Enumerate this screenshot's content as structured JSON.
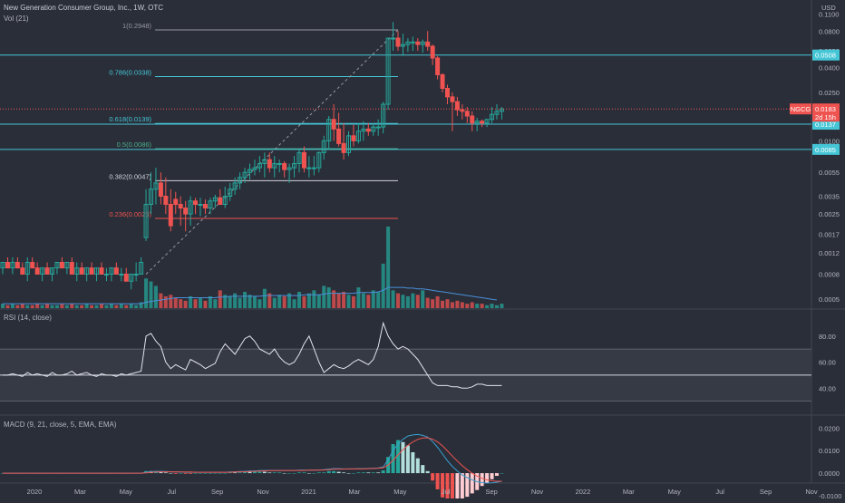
{
  "header": {
    "price_title": "New Generation Consumer Group, Inc., 1W, OTC",
    "volume_label": "Vol (21)",
    "rsi_title": "RSI (14, close)",
    "macd_title": "MACD (9, 21, close, 5, EMA, EMA)",
    "currency": "USD"
  },
  "colors": {
    "background": "#2a2e39",
    "up": "#26a69a",
    "down": "#ef5350",
    "fib_cyan": "#45c6d6",
    "fib_red": "#ef5350",
    "fib_white": "#d1d4dc",
    "fib_green": "#4caf8a",
    "volume_ma": "#4a90d9",
    "rsi_line": "#e0e3eb",
    "macd_line": "#3aa0d0",
    "signal_line": "#ef5350"
  },
  "chart_data": [
    {
      "type": "candlestick",
      "name": "price",
      "scale": "log",
      "ylim": [
        0.00045,
        0.13
      ],
      "y_ticks": [
        "0.1100",
        "0.0800",
        "0.0550",
        "0.0400",
        "0.0250",
        "0.0150",
        "0.0100",
        "0.0055",
        "0.0035",
        "0.0025",
        "0.0017",
        "0.0012",
        "0.0008",
        "0.0005"
      ],
      "x_ticks": [
        "2020",
        "Mar",
        "May",
        "Jul",
        "Sep",
        "Nov",
        "2021",
        "Mar",
        "May",
        "Jul",
        "Sep",
        "Nov",
        "2022",
        "Mar",
        "May",
        "Jul",
        "Sep",
        "Nov"
      ],
      "series": [
        {
          "name": "NGCG",
          "start": "2019-11-04",
          "interval": "1W",
          "open": [
            0.0009,
            0.001,
            0.0009,
            0.001,
            0.0009,
            0.0008,
            0.001,
            0.0009,
            0.0008,
            0.0009,
            0.0008,
            0.0009,
            0.001,
            0.0009,
            0.001,
            0.0008,
            0.0009,
            0.0008,
            0.0009,
            0.0008,
            0.0009,
            0.0008,
            0.0008,
            0.0009,
            0.0008,
            0.0008,
            0.0007,
            0.0008,
            0.0008,
            0.0016,
            0.003,
            0.004,
            0.0045,
            0.0035,
            0.003,
            0.0033,
            0.003,
            0.0028,
            0.0025,
            0.0032,
            0.003,
            0.003,
            0.0028,
            0.0032,
            0.0034,
            0.003,
            0.0035,
            0.004,
            0.0045,
            0.005,
            0.0055,
            0.0058,
            0.006,
            0.0065,
            0.007,
            0.006,
            0.0065,
            0.0065,
            0.0058,
            0.006,
            0.0065,
            0.008,
            0.006,
            0.006,
            0.006,
            0.008,
            0.01,
            0.015,
            0.0125,
            0.0095,
            0.008,
            0.011,
            0.01,
            0.012,
            0.0125,
            0.012,
            0.013,
            0.013,
            0.02,
            0.07,
            0.07,
            0.06,
            0.062,
            0.065,
            0.065,
            0.062,
            0.065,
            0.06,
            0.048,
            0.035,
            0.027,
            0.023,
            0.021,
            0.018,
            0.0175,
            0.016,
            0.014,
            0.0145,
            0.014,
            0.015,
            0.0165,
            0.0175
          ],
          "high": [
            0.001,
            0.0011,
            0.0011,
            0.0011,
            0.001,
            0.0011,
            0.0011,
            0.001,
            0.0009,
            0.001,
            0.0009,
            0.001,
            0.0011,
            0.001,
            0.0011,
            0.001,
            0.001,
            0.0009,
            0.001,
            0.0009,
            0.001,
            0.0009,
            0.0009,
            0.001,
            0.0009,
            0.0009,
            0.0008,
            0.001,
            0.0011,
            0.004,
            0.0055,
            0.006,
            0.0055,
            0.005,
            0.004,
            0.0038,
            0.0035,
            0.0032,
            0.0035,
            0.0034,
            0.0034,
            0.0033,
            0.0034,
            0.0036,
            0.004,
            0.0042,
            0.0045,
            0.005,
            0.0055,
            0.006,
            0.0065,
            0.007,
            0.0075,
            0.008,
            0.008,
            0.0075,
            0.007,
            0.0068,
            0.0065,
            0.0075,
            0.0085,
            0.009,
            0.0075,
            0.0075,
            0.0082,
            0.011,
            0.016,
            0.02,
            0.017,
            0.014,
            0.012,
            0.0135,
            0.014,
            0.0145,
            0.014,
            0.014,
            0.015,
            0.021,
            0.07,
            0.095,
            0.08,
            0.076,
            0.07,
            0.072,
            0.07,
            0.068,
            0.08,
            0.062,
            0.05,
            0.036,
            0.029,
            0.025,
            0.023,
            0.02,
            0.019,
            0.0175,
            0.0155,
            0.015,
            0.015,
            0.019,
            0.02,
            0.019
          ],
          "low": [
            0.0008,
            0.0009,
            0.0008,
            0.0009,
            0.0008,
            0.0007,
            0.0009,
            0.0008,
            0.0007,
            0.0008,
            0.0007,
            0.0008,
            0.0009,
            0.0008,
            0.0008,
            0.0007,
            0.0008,
            0.0007,
            0.0008,
            0.0007,
            0.0008,
            0.0007,
            0.0007,
            0.0008,
            0.0007,
            0.0007,
            0.0006,
            0.0007,
            0.0008,
            0.0015,
            0.0025,
            0.003,
            0.003,
            0.0025,
            0.0018,
            0.0025,
            0.002,
            0.0018,
            0.002,
            0.0025,
            0.0024,
            0.0025,
            0.0025,
            0.0028,
            0.003,
            0.0028,
            0.0032,
            0.0036,
            0.004,
            0.0045,
            0.0048,
            0.0052,
            0.0055,
            0.005,
            0.0055,
            0.005,
            0.0055,
            0.005,
            0.0045,
            0.005,
            0.0055,
            0.0055,
            0.005,
            0.0052,
            0.0055,
            0.007,
            0.0085,
            0.01,
            0.009,
            0.007,
            0.0075,
            0.009,
            0.0095,
            0.01,
            0.011,
            0.011,
            0.011,
            0.0115,
            0.018,
            0.055,
            0.055,
            0.05,
            0.054,
            0.055,
            0.055,
            0.053,
            0.055,
            0.042,
            0.032,
            0.025,
            0.02,
            0.012,
            0.016,
            0.015,
            0.014,
            0.012,
            0.012,
            0.013,
            0.013,
            0.014,
            0.015,
            0.015
          ],
          "close": [
            0.001,
            0.0009,
            0.001,
            0.0009,
            0.0008,
            0.001,
            0.0009,
            0.0008,
            0.0009,
            0.0008,
            0.0009,
            0.001,
            0.0009,
            0.001,
            0.0008,
            0.0009,
            0.0008,
            0.0009,
            0.0008,
            0.0009,
            0.0008,
            0.0008,
            0.0009,
            0.0008,
            0.0008,
            0.0007,
            0.0008,
            0.0008,
            0.001,
            0.003,
            0.004,
            0.0045,
            0.0035,
            0.003,
            0.002,
            0.003,
            0.0028,
            0.0025,
            0.0032,
            0.003,
            0.003,
            0.0028,
            0.0032,
            0.0034,
            0.003,
            0.0035,
            0.004,
            0.0045,
            0.005,
            0.0055,
            0.0058,
            0.006,
            0.0065,
            0.007,
            0.006,
            0.0065,
            0.0065,
            0.0058,
            0.006,
            0.0065,
            0.008,
            0.006,
            0.006,
            0.006,
            0.008,
            0.01,
            0.015,
            0.0125,
            0.0095,
            0.008,
            0.011,
            0.01,
            0.012,
            0.0125,
            0.012,
            0.013,
            0.013,
            0.02,
            0.07,
            0.07,
            0.06,
            0.062,
            0.065,
            0.065,
            0.062,
            0.065,
            0.06,
            0.048,
            0.035,
            0.027,
            0.023,
            0.021,
            0.018,
            0.0175,
            0.016,
            0.014,
            0.0145,
            0.014,
            0.015,
            0.0165,
            0.0175,
            0.0183
          ]
        }
      ],
      "volume": {
        "name": "Vol (21)",
        "values": [
          3,
          2,
          3,
          2,
          3,
          2,
          2,
          3,
          2,
          3,
          2,
          2,
          3,
          2,
          3,
          2,
          2,
          3,
          2,
          2,
          3,
          2,
          3,
          2,
          3,
          2,
          3,
          2,
          4,
          20,
          18,
          15,
          10,
          8,
          9,
          7,
          6,
          5,
          8,
          6,
          7,
          5,
          8,
          6,
          12,
          9,
          8,
          10,
          7,
          11,
          9,
          8,
          6,
          13,
          10,
          7,
          9,
          8,
          10,
          6,
          11,
          8,
          10,
          12,
          9,
          15,
          14,
          12,
          10,
          11,
          9,
          8,
          14,
          10,
          9,
          12,
          11,
          30,
          55,
          12,
          10,
          9,
          8,
          10,
          9,
          12,
          7,
          6,
          8,
          5,
          6,
          4,
          5,
          4,
          3,
          4,
          3,
          3,
          2,
          3,
          2,
          3
        ],
        "ma": [
          3,
          3,
          3,
          3,
          3,
          3,
          3,
          3,
          3,
          3,
          3,
          3,
          3,
          3,
          3,
          3,
          3,
          3,
          3,
          3,
          3,
          3,
          3,
          3,
          3,
          3,
          3,
          3,
          3,
          4,
          4.5,
          5,
          5.5,
          6,
          6.5,
          7,
          7,
          7,
          7,
          7,
          7,
          7,
          7,
          7,
          7.5,
          7.5,
          8,
          8,
          8,
          8,
          8,
          8,
          8,
          8.5,
          8.5,
          8.5,
          8.5,
          8.5,
          8.5,
          8.5,
          8.5,
          9,
          9,
          9,
          9,
          9.5,
          10,
          10,
          10,
          10,
          10,
          10,
          10.5,
          10.5,
          10.5,
          10.5,
          11,
          12,
          14,
          14,
          14,
          14,
          13.5,
          13.5,
          13,
          13,
          12.5,
          12,
          11.5,
          11,
          10.5,
          10,
          9.5,
          9,
          8.5,
          8,
          7.5,
          7,
          6.5,
          6,
          5.5
        ]
      },
      "fib_levels": [
        {
          "label": "1(0.2948)",
          "value": 0.2948,
          "color": "#9598a1"
        },
        {
          "label": "0.786(0.0338)",
          "value": 0.0338,
          "color": "#45c6d6"
        },
        {
          "label": "0.618(0.0139)",
          "value": 0.0139,
          "color": "#45c6d6"
        },
        {
          "label": "0.5(0.0086)",
          "value": 0.0086,
          "color": "#4caf8a"
        },
        {
          "label": "0.382(0.0047)",
          "value": 0.0047,
          "color": "#d1d4dc"
        },
        {
          "label": "0.236(0.0023)",
          "value": 0.0023,
          "color": "#ef5350"
        }
      ],
      "hlines": [
        {
          "value": 0.0508,
          "label": "0.0508",
          "color": "#45c6d6"
        },
        {
          "value": 0.0085,
          "label": "0.0085",
          "color": "#45c6d6"
        },
        {
          "value": 0.0137,
          "label": "0.0137",
          "color": "#45c6d6"
        }
      ],
      "last_price": {
        "symbol": "NGCG",
        "value": "0.0183",
        "countdown": "2d 15h"
      }
    },
    {
      "type": "line",
      "name": "RSI (14, close)",
      "ylim": [
        20,
        100
      ],
      "y_ticks": [
        "80.00",
        "60.00",
        "40.00"
      ],
      "bands": [
        30,
        70
      ],
      "midline": 50,
      "series": [
        {
          "name": "RSI",
          "values": [
            50,
            50,
            51,
            50,
            49,
            52,
            50,
            51,
            50,
            49,
            52,
            50,
            50,
            51,
            53,
            50,
            51,
            52,
            50,
            49,
            51,
            50,
            50,
            49,
            51,
            50,
            51,
            52,
            53,
            80,
            82,
            76,
            72,
            60,
            55,
            58,
            56,
            54,
            62,
            60,
            58,
            55,
            57,
            59,
            68,
            74,
            70,
            66,
            72,
            78,
            80,
            76,
            70,
            68,
            66,
            70,
            64,
            60,
            58,
            60,
            66,
            74,
            80,
            70,
            60,
            52,
            55,
            58,
            56,
            55,
            57,
            60,
            62,
            60,
            58,
            62,
            72,
            90,
            80,
            74,
            70,
            72,
            70,
            66,
            62,
            56,
            50,
            44,
            42,
            42,
            42,
            41,
            41,
            40,
            40,
            41,
            43,
            43,
            42,
            42,
            42,
            42
          ]
        }
      ]
    },
    {
      "type": "line",
      "name": "MACD (9, 21, close, 5, EMA, EMA)",
      "ylim": [
        -0.004,
        0.025
      ],
      "y_ticks": [
        "0.0200",
        "0.0100",
        "0.0000",
        "-0.0100"
      ],
      "series": [
        {
          "name": "MACD",
          "values": [
            0,
            0,
            0,
            0,
            0,
            0,
            0,
            0,
            0,
            0,
            0,
            0,
            0,
            0,
            0,
            0,
            0,
            0,
            0,
            0,
            0,
            0,
            0,
            0,
            0,
            0,
            0,
            0,
            0,
            0.0004,
            0.0006,
            0.0008,
            0.0008,
            0.0007,
            0.0006,
            0.0005,
            0.0005,
            0.0004,
            0.0004,
            0.0004,
            0.0004,
            0.0004,
            0.0004,
            0.0004,
            0.0004,
            0.0004,
            0.0005,
            0.0006,
            0.0007,
            0.0008,
            0.0009,
            0.001,
            0.0011,
            0.0012,
            0.0012,
            0.0012,
            0.0012,
            0.0012,
            0.0012,
            0.0012,
            0.0013,
            0.0013,
            0.0013,
            0.0013,
            0.0014,
            0.0015,
            0.0018,
            0.002,
            0.002,
            0.0019,
            0.0019,
            0.0019,
            0.002,
            0.002,
            0.0021,
            0.0022,
            0.0023,
            0.0028,
            0.006,
            0.01,
            0.013,
            0.015,
            0.0165,
            0.017,
            0.0172,
            0.0168,
            0.016,
            0.014,
            0.0115,
            0.0085,
            0.0055,
            0.003,
            0.001,
            -0.0008,
            -0.002,
            -0.003,
            -0.0038,
            -0.0042,
            -0.0044,
            -0.0043,
            -0.004,
            -0.0036
          ]
        },
        {
          "name": "Signal",
          "values": [
            0,
            0,
            0,
            0,
            0,
            0,
            0,
            0,
            0,
            0,
            0,
            0,
            0,
            0,
            0,
            0,
            0,
            0,
            0,
            0,
            0,
            0,
            0,
            0,
            0,
            0,
            0,
            0,
            0,
            0.0001,
            0.0003,
            0.0005,
            0.0006,
            0.0006,
            0.0006,
            0.0006,
            0.0005,
            0.0005,
            0.0005,
            0.0004,
            0.0004,
            0.0004,
            0.0004,
            0.0004,
            0.0004,
            0.0004,
            0.0004,
            0.0005,
            0.0006,
            0.0006,
            0.0007,
            0.0008,
            0.0009,
            0.001,
            0.0011,
            0.0011,
            0.0011,
            0.0012,
            0.0012,
            0.0012,
            0.0012,
            0.0012,
            0.0013,
            0.0013,
            0.0013,
            0.0014,
            0.0015,
            0.0017,
            0.0018,
            0.0018,
            0.0019,
            0.0019,
            0.0019,
            0.0019,
            0.002,
            0.0021,
            0.0022,
            0.0024,
            0.0036,
            0.0057,
            0.0081,
            0.0104,
            0.0124,
            0.0139,
            0.015,
            0.0156,
            0.0157,
            0.0151,
            0.0139,
            0.0121,
            0.0099,
            0.0076,
            0.0054,
            0.0033,
            0.0015,
            0.0,
            -0.0013,
            -0.0023,
            -0.003,
            -0.0034,
            -0.0036,
            -0.0036
          ]
        }
      ]
    }
  ]
}
